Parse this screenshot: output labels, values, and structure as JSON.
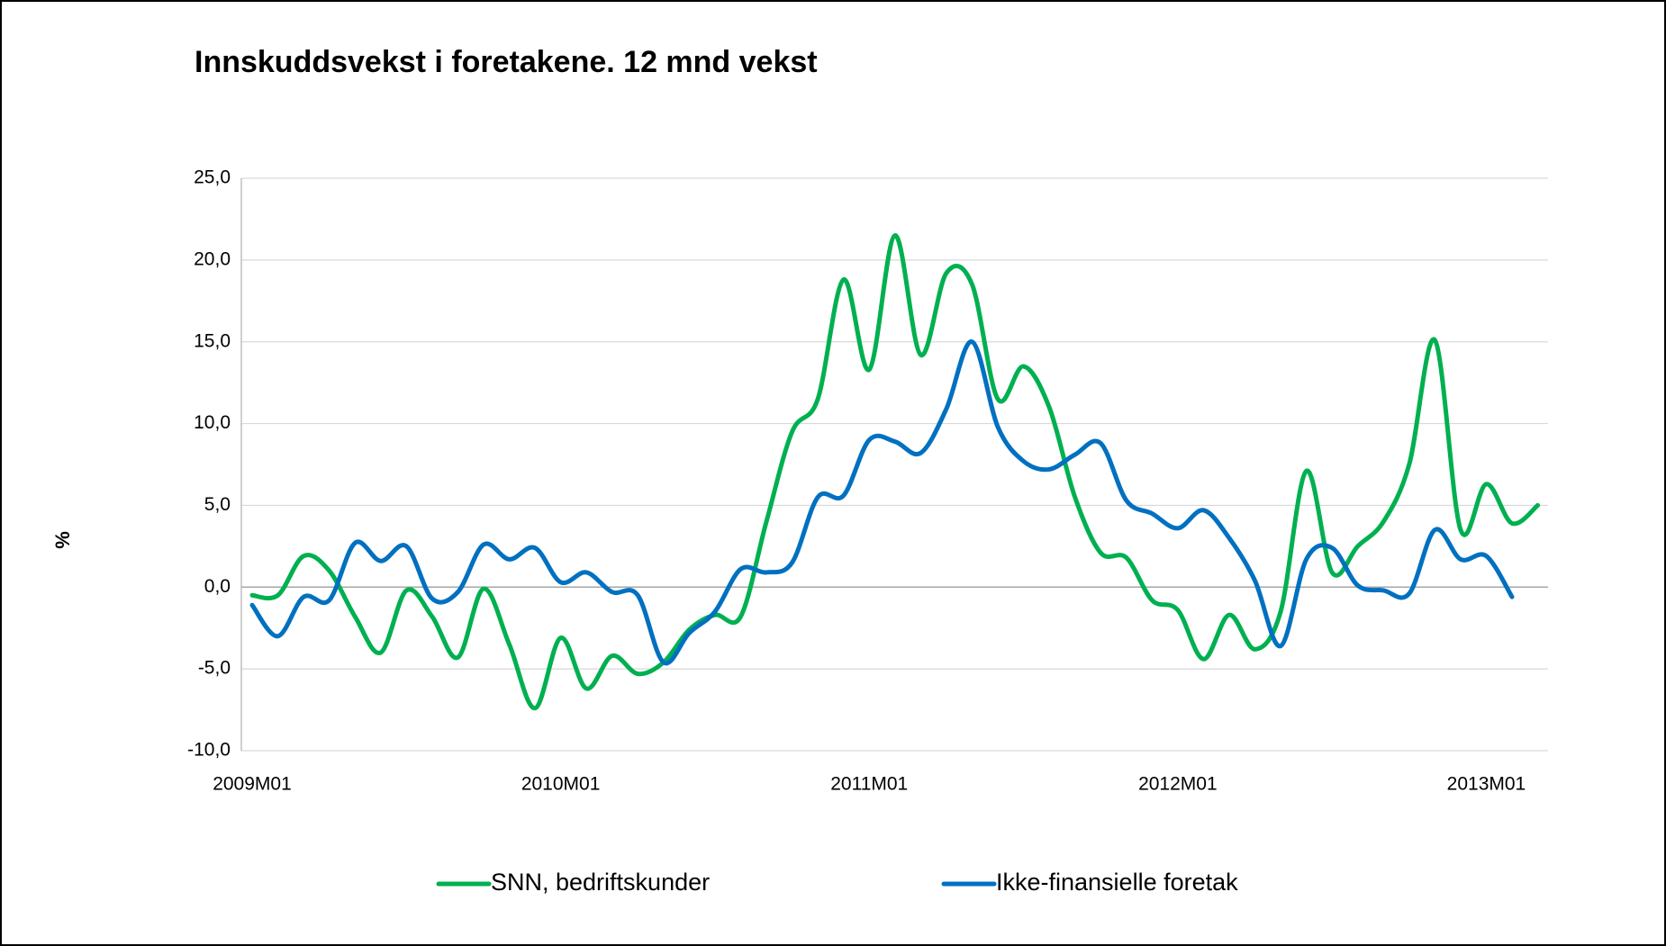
{
  "chart_data": {
    "type": "line",
    "title": "Innskuddsvekst i foretakene. 12 mnd vekst",
    "ylabel": "%",
    "categories": [
      "2009M01",
      null,
      null,
      null,
      null,
      null,
      null,
      null,
      null,
      null,
      null,
      null,
      "2010M01",
      null,
      null,
      null,
      null,
      null,
      null,
      null,
      null,
      null,
      null,
      null,
      "2011M01",
      null,
      null,
      null,
      null,
      null,
      null,
      null,
      null,
      null,
      null,
      null,
      "2012M01",
      null,
      null,
      null,
      null,
      null,
      null,
      null,
      null,
      null,
      null,
      null,
      "2013M01",
      null,
      null
    ],
    "series": [
      {
        "name": "SNN, bedriftskunder",
        "color": "#00b050",
        "values": [
          -0.5,
          -0.5,
          1.9,
          1.0,
          -1.8,
          -4.0,
          -0.2,
          -1.8,
          -4.3,
          -0.1,
          -3.5,
          -7.4,
          -3.1,
          -6.2,
          -4.2,
          -5.3,
          -4.6,
          -2.6,
          -1.7,
          -1.8,
          4.0,
          9.5,
          11.5,
          18.8,
          13.3,
          21.5,
          14.2,
          19.2,
          18.5,
          11.5,
          13.5,
          11.0,
          5.5,
          2.1,
          1.8,
          -0.8,
          -1.4,
          -4.4,
          -1.7,
          -3.8,
          -1.5,
          7.1,
          0.9,
          2.5,
          4.0,
          7.5,
          15.1,
          3.5,
          6.3,
          3.9,
          5.0
        ]
      },
      {
        "name": "Ikke-finansielle foretak",
        "color": "#0070c0",
        "values": [
          -1.1,
          -3.0,
          -0.6,
          -0.8,
          2.7,
          1.6,
          2.5,
          -0.7,
          -0.3,
          2.6,
          1.7,
          2.4,
          0.3,
          0.9,
          -0.3,
          -0.5,
          -4.6,
          -2.8,
          -1.5,
          1.1,
          0.9,
          1.5,
          5.5,
          5.6,
          9.0,
          8.9,
          8.2,
          10.9,
          15.0,
          9.8,
          7.7,
          7.2,
          8.1,
          8.8,
          5.3,
          4.5,
          3.6,
          4.7,
          3.0,
          0.4,
          -3.6,
          1.7,
          2.4,
          0.1,
          -0.2,
          -0.4,
          3.5,
          1.7,
          1.9,
          -0.6,
          null
        ]
      }
    ],
    "ylim": [
      -10,
      25
    ],
    "yticks": [
      {
        "value": -10,
        "label": "-10,0"
      },
      {
        "value": -5,
        "label": "-5,0"
      },
      {
        "value": 0,
        "label": "0,0"
      },
      {
        "value": 5,
        "label": "5,0"
      },
      {
        "value": 10,
        "label": "10,0"
      },
      {
        "value": 15,
        "label": "15,0"
      },
      {
        "value": 20,
        "label": "20,0"
      },
      {
        "value": 25,
        "label": "25,0"
      }
    ],
    "grid": true,
    "legend": "bottom"
  }
}
